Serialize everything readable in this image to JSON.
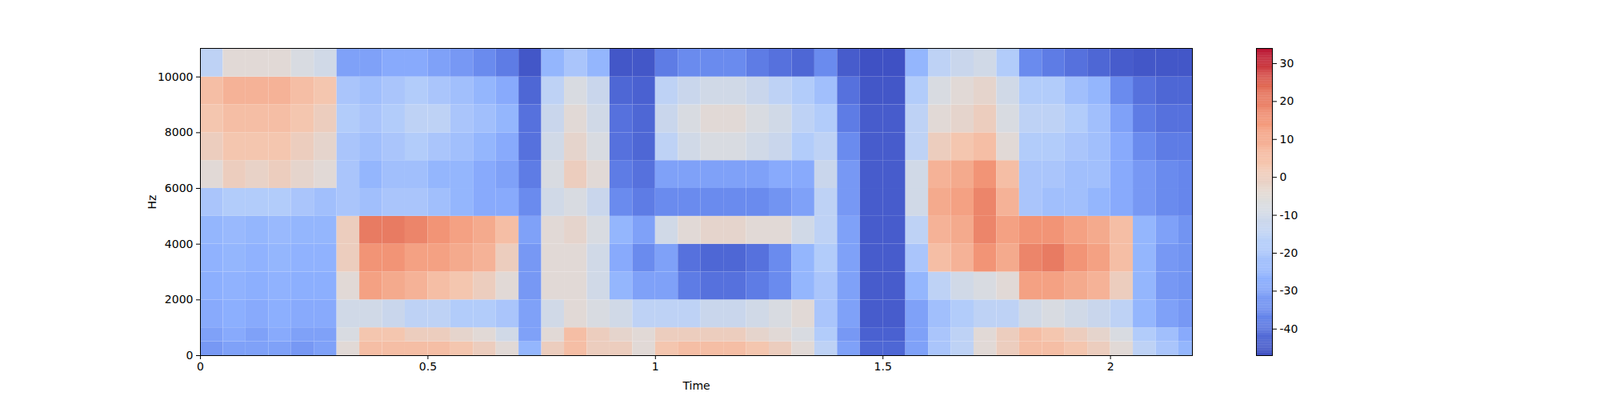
{
  "chart_data": {
    "type": "heatmap",
    "x_label": "Time",
    "y_label": "Hz",
    "xlim": [
      0,
      2.18
    ],
    "xticks": [
      0,
      0.5,
      1,
      1.5,
      2
    ],
    "ylim": [
      0,
      11025
    ],
    "yticks": [
      0,
      2000,
      4000,
      6000,
      8000,
      10000
    ],
    "x_edges": [
      0,
      0.05,
      0.1,
      0.15,
      0.2,
      0.25,
      0.3,
      0.35,
      0.4,
      0.45,
      0.5,
      0.55,
      0.6,
      0.65,
      0.7,
      0.75,
      0.8,
      0.85,
      0.9,
      0.95,
      1,
      1.05,
      1.1,
      1.15,
      1.2,
      1.25,
      1.3,
      1.35,
      1.4,
      1.45,
      1.5,
      1.55,
      1.6,
      1.65,
      1.7,
      1.75,
      1.8,
      1.85,
      1.9,
      1.95,
      2,
      2.05,
      2.1,
      2.15,
      2.18
    ],
    "y_edges": [
      0,
      500,
      1000,
      2000,
      3000,
      4000,
      5000,
      6000,
      7000,
      8000,
      9000,
      10000,
      11025
    ],
    "values": [
      [
        -32,
        -30,
        -30,
        -30,
        -32,
        -30,
        -5,
        5,
        5,
        5,
        5,
        3,
        0,
        -5,
        -25,
        0,
        5,
        0,
        0,
        -5,
        3,
        5,
        5,
        5,
        3,
        0,
        -5,
        -15,
        -30,
        -42,
        -42,
        -30,
        -20,
        -15,
        -5,
        0,
        5,
        5,
        3,
        0,
        -5,
        -15,
        -20,
        -25
      ],
      [
        -30,
        -28,
        -30,
        -28,
        -30,
        -30,
        -8,
        3,
        3,
        0,
        0,
        -3,
        -5,
        -10,
        -30,
        -5,
        5,
        0,
        -3,
        -5,
        0,
        0,
        0,
        0,
        -3,
        -5,
        -8,
        -18,
        -32,
        -43,
        -43,
        -30,
        -20,
        -15,
        -5,
        0,
        5,
        3,
        0,
        -3,
        -8,
        -18,
        -22,
        -28
      ],
      [
        -28,
        -27,
        -28,
        -27,
        -28,
        -28,
        -10,
        -10,
        -12,
        -15,
        -15,
        -18,
        -18,
        -20,
        -30,
        -10,
        -5,
        -8,
        -10,
        -15,
        -15,
        -15,
        -12,
        -12,
        -10,
        -8,
        -5,
        -20,
        -30,
        -44,
        -44,
        -30,
        -22,
        -18,
        -15,
        -15,
        -10,
        -8,
        -10,
        -12,
        -15,
        -25,
        -30,
        -32
      ],
      [
        -27,
        -26,
        -27,
        -26,
        -27,
        -27,
        -5,
        12,
        10,
        8,
        5,
        3,
        0,
        -5,
        -32,
        -5,
        -5,
        -10,
        -25,
        -30,
        -30,
        -38,
        -40,
        -40,
        -38,
        -35,
        -25,
        -20,
        -30,
        -44,
        -44,
        -25,
        -15,
        -10,
        -8,
        -5,
        12,
        12,
        10,
        8,
        0,
        -25,
        -32,
        -33
      ],
      [
        -26,
        -25,
        -26,
        -25,
        -26,
        -26,
        0,
        15,
        15,
        12,
        12,
        10,
        8,
        0,
        -32,
        -5,
        -5,
        -10,
        -28,
        -35,
        -30,
        -40,
        -42,
        -42,
        -40,
        -35,
        -25,
        -18,
        -30,
        -44,
        -44,
        -20,
        5,
        8,
        15,
        10,
        18,
        20,
        15,
        12,
        5,
        -25,
        -32,
        -33
      ],
      [
        -25,
        -24,
        -25,
        -24,
        -25,
        -25,
        0,
        20,
        20,
        18,
        15,
        12,
        10,
        5,
        -30,
        -5,
        -3,
        -8,
        -25,
        -30,
        -10,
        -5,
        -3,
        -3,
        -5,
        -5,
        -10,
        -15,
        -30,
        -44,
        -44,
        -15,
        8,
        10,
        18,
        12,
        15,
        15,
        12,
        10,
        5,
        -25,
        -30,
        -33
      ],
      [
        -20,
        -18,
        -18,
        -18,
        -20,
        -22,
        -20,
        -22,
        -20,
        -20,
        -22,
        -25,
        -28,
        -28,
        -35,
        -10,
        -8,
        -12,
        -35,
        -38,
        -35,
        -35,
        -35,
        -35,
        -35,
        -33,
        -30,
        -15,
        -32,
        -44,
        -44,
        -10,
        10,
        12,
        18,
        8,
        -20,
        -22,
        -22,
        -25,
        -28,
        -32,
        -35,
        -36
      ],
      [
        -5,
        0,
        -2,
        0,
        -3,
        -5,
        -20,
        -25,
        -22,
        -22,
        -25,
        -25,
        -28,
        -30,
        -38,
        -8,
        0,
        -5,
        -38,
        -40,
        -30,
        -30,
        -30,
        -30,
        -30,
        -28,
        -28,
        -12,
        -32,
        -44,
        -44,
        -10,
        8,
        10,
        15,
        5,
        -20,
        -20,
        -22,
        -22,
        -28,
        -32,
        -35,
        -36
      ],
      [
        0,
        3,
        3,
        3,
        0,
        -3,
        -20,
        -22,
        -20,
        -18,
        -20,
        -22,
        -25,
        -28,
        -40,
        -10,
        -3,
        -8,
        -40,
        -42,
        -15,
        -10,
        -8,
        -8,
        -10,
        -12,
        -18,
        -15,
        -35,
        -44,
        -44,
        -15,
        0,
        3,
        5,
        -5,
        -18,
        -18,
        -20,
        -22,
        -28,
        -35,
        -38,
        -38
      ],
      [
        3,
        5,
        5,
        5,
        3,
        0,
        -18,
        -20,
        -18,
        -15,
        -15,
        -20,
        -22,
        -25,
        -40,
        -12,
        -5,
        -10,
        -40,
        -42,
        -12,
        -8,
        -5,
        -5,
        -8,
        -10,
        -15,
        -18,
        -38,
        -44,
        -44,
        -15,
        -5,
        -3,
        0,
        -8,
        -15,
        -15,
        -18,
        -22,
        -30,
        -38,
        -40,
        -40
      ],
      [
        5,
        8,
        8,
        8,
        5,
        3,
        -20,
        -22,
        -20,
        -18,
        -20,
        -22,
        -25,
        -28,
        -42,
        -15,
        -8,
        -12,
        -42,
        -43,
        -15,
        -12,
        -10,
        -10,
        -12,
        -15,
        -18,
        -22,
        -40,
        -45,
        -45,
        -18,
        -8,
        -5,
        -3,
        -10,
        -18,
        -18,
        -22,
        -25,
        -35,
        -40,
        -42,
        -42
      ],
      [
        -15,
        -5,
        -5,
        -5,
        -8,
        -10,
        -30,
        -30,
        -28,
        -28,
        -30,
        -32,
        -35,
        -38,
        -45,
        -25,
        -20,
        -25,
        -45,
        -45,
        -38,
        -35,
        -35,
        -35,
        -38,
        -40,
        -42,
        -35,
        -44,
        -46,
        -46,
        -25,
        -15,
        -12,
        -10,
        -18,
        -35,
        -38,
        -40,
        -42,
        -44,
        -45,
        -45,
        -45
      ]
    ],
    "colorbar": {
      "zlim": [
        -47,
        34
      ],
      "zticks": [
        -40,
        -30,
        -20,
        -10,
        0,
        10,
        20,
        30
      ]
    }
  }
}
